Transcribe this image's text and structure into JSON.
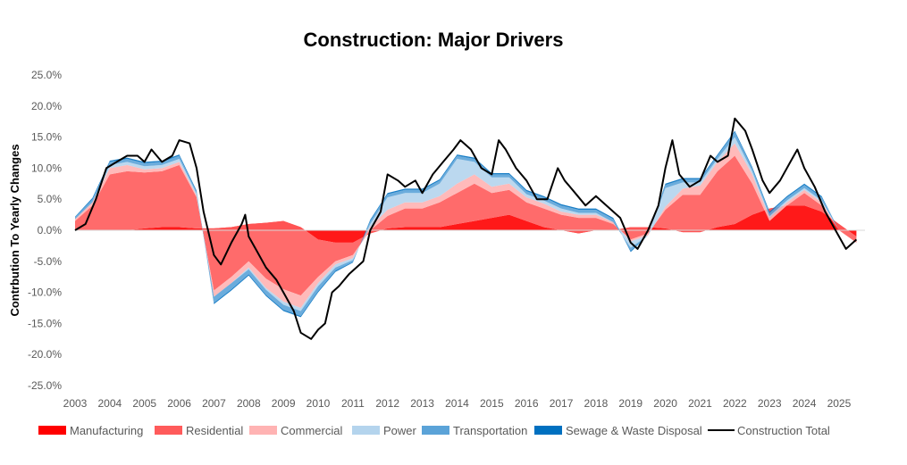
{
  "chart_data": {
    "type": "area",
    "title": "Construction: Major Drivers",
    "xlabel": "",
    "ylabel": "Contrbution To Yearly Changes",
    "ylim": [
      -25,
      25
    ],
    "xlim": [
      2003,
      2025.7
    ],
    "y_ticks": [
      "25.0%",
      "20.0%",
      "15.0%",
      "10.0%",
      "5.0%",
      "0.0%",
      "-5.0%",
      "-10.0%",
      "-15.0%",
      "-20.0%",
      "-25.0%"
    ],
    "y_tick_values": [
      25,
      20,
      15,
      10,
      5,
      0,
      -5,
      -10,
      -15,
      -20,
      -25
    ],
    "x_ticks": [
      "2003",
      "2004",
      "2005",
      "2006",
      "2007",
      "2008",
      "2009",
      "2010",
      "2011",
      "2012",
      "2013",
      "2014",
      "2015",
      "2016",
      "2017",
      "2018",
      "2019",
      "2020",
      "2021",
      "2022",
      "2023",
      "2024",
      "2025"
    ],
    "legend_position": "bottom",
    "x": [
      2003,
      2003.5,
      2004,
      2004.5,
      2005,
      2005.5,
      2006,
      2006.5,
      2007,
      2007.5,
      2008,
      2008.5,
      2009,
      2009.5,
      2010,
      2010.5,
      2011,
      2011.5,
      2012,
      2012.5,
      2013,
      2013.5,
      2014,
      2014.5,
      2015,
      2015.5,
      2016,
      2016.5,
      2017,
      2017.5,
      2018,
      2018.5,
      2019,
      2019.5,
      2020,
      2020.5,
      2021,
      2021.5,
      2022,
      2022.5,
      2023,
      2023.5,
      2024,
      2024.5,
      2025,
      2025.5
    ],
    "series": [
      {
        "name": "Manufacturing",
        "color": "#ff0000",
        "values": [
          0,
          0,
          0,
          0,
          0.3,
          0.5,
          0.5,
          0.3,
          0.3,
          0.5,
          1,
          1.2,
          1.5,
          0.5,
          -1.5,
          -2,
          -2,
          -0.5,
          0.3,
          0.5,
          0.5,
          0.5,
          1,
          1.5,
          2,
          2.5,
          1.5,
          0.5,
          0,
          -0.5,
          0,
          0,
          0.5,
          0.5,
          0.3,
          -0.3,
          -0.3,
          0.5,
          1,
          2.5,
          3.5,
          4,
          4,
          3,
          1,
          -1
        ]
      },
      {
        "name": "Residential",
        "color": "#ff5b5b",
        "values": [
          1.5,
          4,
          9,
          9.5,
          9,
          9,
          10,
          5,
          -10,
          -8,
          -6,
          -9,
          -11,
          -11,
          -6,
          -3,
          -2,
          0.5,
          2,
          3,
          3,
          4,
          5,
          6,
          4,
          4,
          3,
          3,
          2.5,
          2.5,
          2,
          1,
          -2,
          -1,
          3,
          6,
          6,
          9,
          11,
          5,
          -2,
          0,
          2,
          1,
          -1,
          -1
        ]
      },
      {
        "name": "Commercial",
        "color": "#ffb3b3",
        "values": [
          0.3,
          0.5,
          1,
          1,
          0.5,
          0.5,
          0.5,
          0.3,
          -1,
          -1,
          -1,
          -1.5,
          -2,
          -2,
          -1,
          -0.5,
          -0.5,
          0.5,
          1,
          1,
          1,
          1,
          1.5,
          1.5,
          1,
          1,
          0.8,
          0.8,
          0.5,
          0.5,
          0.5,
          0.3,
          -0.3,
          -0.3,
          0.5,
          1,
          1.5,
          1.5,
          2,
          1.5,
          0.5,
          0.5,
          0.5,
          0.5,
          0,
          0
        ]
      },
      {
        "name": "Power",
        "color": "#b4d4ed",
        "values": [
          0,
          0,
          0.5,
          0.5,
          0.5,
          0.5,
          0.5,
          0.3,
          0,
          0,
          -0.3,
          -0.3,
          -0.5,
          -0.5,
          -0.5,
          -0.5,
          -0.3,
          0.5,
          2,
          1.5,
          1.5,
          2,
          4,
          2,
          1.5,
          1,
          0.5,
          0.5,
          0.5,
          0.3,
          0.3,
          0,
          -1,
          0,
          3,
          1,
          0.5,
          0.5,
          1,
          0.5,
          0.3,
          0.3,
          0.3,
          0.3,
          0,
          0
        ]
      },
      {
        "name": "Transportation",
        "color": "#5ba3d8",
        "values": [
          0.3,
          0.5,
          0.5,
          0.5,
          0.5,
          0.5,
          0.5,
          0.3,
          -1,
          -1,
          -0.8,
          -0.8,
          -0.8,
          -0.8,
          -0.8,
          -0.5,
          -0.3,
          0.5,
          0.5,
          0.5,
          0.5,
          0.5,
          0.5,
          0.5,
          0.5,
          0.5,
          0.5,
          0.5,
          0.5,
          0.5,
          0.5,
          0.5,
          -0.5,
          0,
          0.5,
          0.5,
          0.5,
          0.5,
          0.8,
          0.5,
          0.5,
          0.5,
          0.5,
          0.5,
          0,
          0
        ]
      },
      {
        "name": "Sewage & Waste Disposal",
        "color": "#0070c0",
        "values": [
          0.1,
          0.2,
          0.2,
          0.2,
          0.2,
          0.2,
          0.2,
          0.2,
          -0.2,
          -0.2,
          -0.2,
          -0.2,
          -0.2,
          -0.2,
          -0.2,
          -0.2,
          -0.1,
          0.2,
          0.2,
          0.2,
          0.2,
          0.2,
          0.2,
          0.2,
          0.2,
          0.2,
          0.2,
          0.2,
          0.2,
          0.2,
          0.2,
          0.2,
          -0.2,
          0,
          0.2,
          0.2,
          0.2,
          0.2,
          0.2,
          0.2,
          0.2,
          0.2,
          0.2,
          0.2,
          0,
          0
        ]
      }
    ],
    "total": {
      "name": "Construction Total",
      "color": "#000000",
      "x": [
        2003,
        2003.3,
        2003.6,
        2003.9,
        2004.2,
        2004.5,
        2004.8,
        2005,
        2005.2,
        2005.5,
        2005.8,
        2006,
        2006.3,
        2006.5,
        2006.7,
        2007,
        2007.2,
        2007.5,
        2007.8,
        2007.9,
        2008,
        2008.2,
        2008.5,
        2008.8,
        2009,
        2009.3,
        2009.5,
        2009.8,
        2010,
        2010.2,
        2010.4,
        2010.6,
        2010.9,
        2011.1,
        2011.3,
        2011.5,
        2011.8,
        2012,
        2012.3,
        2012.5,
        2012.8,
        2013,
        2013.3,
        2013.6,
        2013.9,
        2014.1,
        2014.4,
        2014.7,
        2015,
        2015.2,
        2015.4,
        2015.7,
        2016,
        2016.3,
        2016.6,
        2016.9,
        2017.1,
        2017.4,
        2017.7,
        2018,
        2018.3,
        2018.7,
        2019,
        2019.2,
        2019.5,
        2019.8,
        2020,
        2020.2,
        2020.4,
        2020.7,
        2021,
        2021.3,
        2021.5,
        2021.8,
        2022,
        2022.3,
        2022.5,
        2022.8,
        2023,
        2023.3,
        2023.6,
        2023.8,
        2024,
        2024.3,
        2024.6,
        2024.9,
        2025.2,
        2025.5
      ],
      "values": [
        0,
        1,
        5,
        10,
        11,
        12,
        12,
        11,
        13,
        11,
        12,
        14.5,
        14,
        10,
        3,
        -4,
        -5.5,
        -2,
        1,
        2.5,
        -1,
        -3,
        -6,
        -8,
        -10,
        -13,
        -16.5,
        -17.5,
        -16,
        -15,
        -10,
        -9,
        -7,
        -6,
        -5,
        0,
        3,
        9,
        8,
        7,
        8,
        6,
        9,
        11,
        13,
        14.5,
        13,
        10,
        9,
        14.5,
        13,
        10,
        8,
        5,
        5,
        10,
        8,
        6,
        4,
        5.5,
        4,
        2,
        -2,
        -3,
        0,
        4,
        10,
        14.5,
        9,
        7,
        8,
        12,
        11,
        12,
        18,
        16,
        13,
        8,
        6,
        8,
        11,
        13,
        10,
        7,
        3,
        0,
        -3,
        -1.5
      ]
    }
  }
}
